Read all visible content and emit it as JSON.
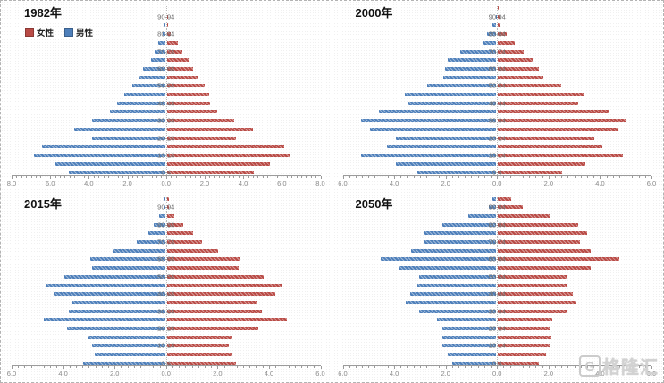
{
  "legend": {
    "female_label": "女性",
    "male_label": "男性"
  },
  "colors": {
    "female": "#b94b46",
    "male": "#4e7fba",
    "axis": "#9b9b9b",
    "age_label": "#6f6f6f"
  },
  "watermark": {
    "logo_text": "G",
    "brand_text": "格隆汇"
  },
  "chart_data": [
    {
      "type": "bar",
      "orientation": "horizontal-population-pyramid",
      "title": "1982年",
      "categories": [
        "0-4",
        "5-9",
        "10-14",
        "15-19",
        "20-24",
        "25-29",
        "30-34",
        "35-39",
        "40-44",
        "45-49",
        "50-54",
        "55-59",
        "60-64",
        "65-69",
        "70-74",
        "75-79",
        "80-84",
        "85-89",
        "90-94",
        "95+"
      ],
      "series": [
        {
          "name": "男性",
          "side": "left",
          "values": [
            5.0,
            5.7,
            6.8,
            6.4,
            3.8,
            4.7,
            3.8,
            2.85,
            2.5,
            2.1,
            1.7,
            1.4,
            1.15,
            0.75,
            0.5,
            0.35,
            0.15,
            0.05,
            0.0,
            0.0
          ]
        },
        {
          "name": "女性",
          "side": "right",
          "values": [
            4.5,
            5.35,
            6.35,
            6.1,
            3.6,
            4.45,
            3.5,
            2.6,
            2.25,
            2.2,
            1.95,
            1.65,
            1.35,
            1.1,
            0.8,
            0.55,
            0.2,
            0.08,
            0.02,
            0.0
          ]
        }
      ],
      "xmax": 8,
      "x_tick_step": 2,
      "x_tick_labels": [
        "8.0",
        "6.0",
        "4.0",
        "2.0",
        "0.0",
        "2.0",
        "4.0",
        "6.0",
        "8.0"
      ],
      "grid": false,
      "legend_visible": true
    },
    {
      "type": "bar",
      "orientation": "horizontal-population-pyramid",
      "title": "2000年",
      "categories": [
        "0-4",
        "5-9",
        "10-14",
        "15-19",
        "20-24",
        "25-29",
        "30-34",
        "35-39",
        "40-44",
        "45-49",
        "50-54",
        "55-59",
        "60-64",
        "65-69",
        "70-74",
        "75-79",
        "80-84",
        "85-89",
        "90-94",
        "95+"
      ],
      "series": [
        {
          "name": "男性",
          "side": "left",
          "values": [
            3.05,
            3.9,
            5.25,
            4.25,
            3.9,
            4.9,
            5.25,
            4.55,
            3.4,
            3.55,
            2.7,
            2.05,
            2.0,
            1.9,
            1.4,
            0.5,
            0.35,
            0.15,
            0.02,
            0.0
          ]
        },
        {
          "name": "女性",
          "side": "right",
          "values": [
            2.5,
            3.4,
            4.85,
            4.05,
            3.75,
            4.65,
            5.0,
            4.3,
            3.1,
            3.35,
            2.45,
            1.75,
            1.6,
            1.35,
            1.0,
            0.65,
            0.35,
            0.1,
            0.06,
            0.04
          ]
        }
      ],
      "xmax": 6,
      "x_tick_step": 2,
      "x_tick_labels": [
        "6.0",
        "4.0",
        "2.0",
        "0.0",
        "2.0",
        "4.0",
        "6.0"
      ],
      "grid": false,
      "legend_visible": false
    },
    {
      "type": "bar",
      "orientation": "horizontal-population-pyramid",
      "title": "2015年",
      "categories": [
        "0-4",
        "5-9",
        "10-14",
        "15-19",
        "20-24",
        "25-29",
        "30-34",
        "35-39",
        "40-44",
        "45-49",
        "50-54",
        "55-59",
        "60-64",
        "65-69",
        "70-74",
        "75-79",
        "80-84",
        "85-89",
        "90-94",
        "95+"
      ],
      "series": [
        {
          "name": "男性",
          "side": "left",
          "values": [
            3.2,
            2.75,
            2.85,
            3.0,
            3.8,
            4.7,
            3.75,
            3.6,
            4.35,
            4.6,
            3.9,
            2.85,
            2.9,
            2.05,
            1.1,
            0.65,
            0.45,
            0.25,
            0.05,
            0.02
          ]
        },
        {
          "name": "女性",
          "side": "right",
          "values": [
            2.7,
            2.55,
            2.4,
            2.55,
            3.55,
            4.65,
            3.7,
            3.5,
            4.2,
            4.45,
            3.75,
            2.8,
            2.85,
            2.0,
            1.35,
            1.0,
            0.65,
            0.3,
            0.08,
            0.07
          ]
        }
      ],
      "xmax": 6,
      "x_tick_step": 2,
      "x_tick_labels": [
        "6.0",
        "4.0",
        "2.0",
        "0.0",
        "2.0",
        "4.0",
        "6.0"
      ],
      "grid": false,
      "legend_visible": false
    },
    {
      "type": "bar",
      "orientation": "horizontal-population-pyramid",
      "title": "2050年",
      "categories": [
        "0-4",
        "5-9",
        "10-14",
        "15-19",
        "20-24",
        "25-29",
        "30-34",
        "35-39",
        "40-44",
        "45-49",
        "50-54",
        "55-59",
        "60-64",
        "65-69",
        "70-74",
        "75-79",
        "80-84",
        "85-89",
        "90-94",
        "95+"
      ],
      "series": [
        {
          "name": "男性",
          "side": "left",
          "values": [
            1.7,
            1.9,
            2.1,
            2.1,
            2.1,
            2.3,
            3.0,
            3.5,
            3.35,
            3.05,
            3.0,
            3.8,
            4.5,
            3.3,
            2.8,
            2.8,
            2.1,
            1.1,
            0.3,
            0.15
          ]
        },
        {
          "name": "女性",
          "side": "right",
          "values": [
            1.6,
            1.85,
            2.0,
            2.05,
            2.0,
            2.1,
            2.7,
            3.05,
            2.9,
            2.65,
            2.65,
            3.6,
            4.7,
            3.6,
            3.2,
            3.45,
            3.1,
            2.0,
            0.95,
            0.5
          ]
        }
      ],
      "xmax": 6,
      "x_tick_step": 2,
      "x_tick_labels": [
        "6.0",
        "4.0",
        "2.0",
        "0.0",
        "2.0",
        "4.0",
        "6.0"
      ],
      "grid": false,
      "legend_visible": false
    }
  ]
}
